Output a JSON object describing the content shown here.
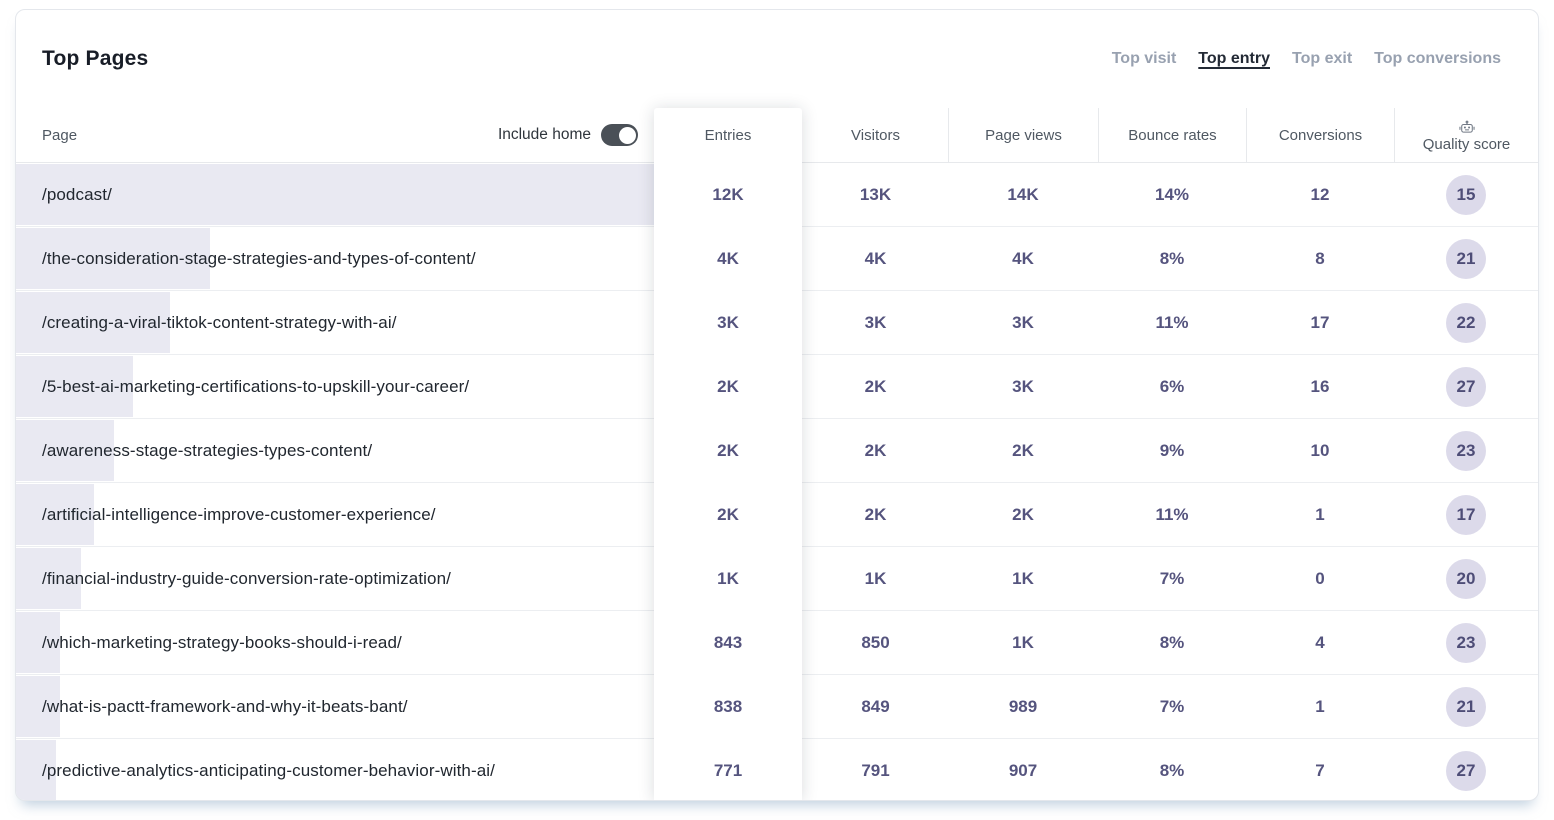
{
  "header": {
    "title": "Top Pages",
    "tabs": [
      {
        "label": "Top visit",
        "active": false
      },
      {
        "label": "Top entry",
        "active": true
      },
      {
        "label": "Top exit",
        "active": false
      },
      {
        "label": "Top conversions",
        "active": false
      }
    ]
  },
  "table": {
    "page_header": "Page",
    "include_home_label": "Include home",
    "include_home_on": true,
    "columns": [
      "Entries",
      "Visitors",
      "Page views",
      "Bounce rates",
      "Conversions",
      "Quality score"
    ],
    "quality_score_icon": "robot-icon",
    "rows": [
      {
        "page": "/podcast/",
        "bar_pct": 100,
        "entries": "12K",
        "visitors": "13K",
        "page_views": "14K",
        "bounce_rate": "14%",
        "conversions": "12",
        "quality_score": "15"
      },
      {
        "page": "/the-consideration-stage-strategies-and-types-of-content/",
        "bar_pct": 30.4,
        "entries": "4K",
        "visitors": "4K",
        "page_views": "4K",
        "bounce_rate": "8%",
        "conversions": "8",
        "quality_score": "21"
      },
      {
        "page": "/creating-a-viral-tiktok-content-strategy-with-ai/",
        "bar_pct": 24.1,
        "entries": "3K",
        "visitors": "3K",
        "page_views": "3K",
        "bounce_rate": "11%",
        "conversions": "17",
        "quality_score": "22"
      },
      {
        "page": "/5-best-ai-marketing-certifications-to-upskill-your-career/",
        "bar_pct": 18.3,
        "entries": "2K",
        "visitors": "2K",
        "page_views": "3K",
        "bounce_rate": "6%",
        "conversions": "16",
        "quality_score": "27"
      },
      {
        "page": "/awareness-stage-strategies-types-content/",
        "bar_pct": 15.3,
        "entries": "2K",
        "visitors": "2K",
        "page_views": "2K",
        "bounce_rate": "9%",
        "conversions": "10",
        "quality_score": "23"
      },
      {
        "page": "/artificial-intelligence-improve-customer-experience/",
        "bar_pct": 12.2,
        "entries": "2K",
        "visitors": "2K",
        "page_views": "2K",
        "bounce_rate": "11%",
        "conversions": "1",
        "quality_score": "17"
      },
      {
        "page": "/financial-industry-guide-conversion-rate-optimization/",
        "bar_pct": 10.2,
        "entries": "1K",
        "visitors": "1K",
        "page_views": "1K",
        "bounce_rate": "7%",
        "conversions": "0",
        "quality_score": "20"
      },
      {
        "page": "/which-marketing-strategy-books-should-i-read/",
        "bar_pct": 6.9,
        "entries": "843",
        "visitors": "850",
        "page_views": "1K",
        "bounce_rate": "8%",
        "conversions": "4",
        "quality_score": "23"
      },
      {
        "page": "/what-is-pactt-framework-and-why-it-beats-bant/",
        "bar_pct": 6.9,
        "entries": "838",
        "visitors": "849",
        "page_views": "989",
        "bounce_rate": "7%",
        "conversions": "1",
        "quality_score": "21"
      },
      {
        "page": "/predictive-analytics-anticipating-customer-behavior-with-ai/",
        "bar_pct": 6.3,
        "entries": "771",
        "visitors": "791",
        "page_views": "907",
        "bounce_rate": "8%",
        "conversions": "7",
        "quality_score": "27"
      }
    ]
  },
  "colors": {
    "accent": "#55547e",
    "bar": "#e9e9f2",
    "badge-bg": "#dcdaea",
    "badge-text": "#4e4d77",
    "toggle": "#4a5057",
    "tab-active": "#232a35",
    "tab-inactive": "#98a1b0"
  }
}
